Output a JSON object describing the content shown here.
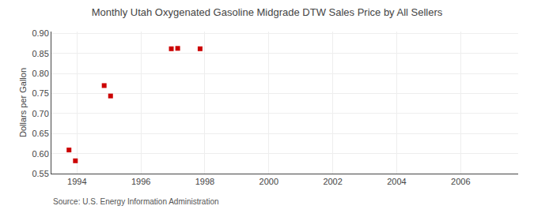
{
  "chart_data": {
    "type": "scatter",
    "title": "Monthly Utah Oxygenated Gasoline Midgrade DTW Sales Price by All Sellers",
    "ylabel": "Dollars per Gallon",
    "source": "Source: U.S. Energy Information Administration",
    "x": [
      1993.75,
      1993.95,
      1994.85,
      1995.05,
      1996.95,
      1997.15,
      1997.85
    ],
    "values": [
      0.609,
      0.582,
      0.77,
      0.744,
      0.862,
      0.863,
      0.862
    ],
    "color": "#cc0000",
    "marker": "square",
    "xlim": [
      1993.2,
      2007.8
    ],
    "ylim": [
      0.55,
      0.905
    ],
    "xticks": [
      1994,
      1996,
      1998,
      2000,
      2002,
      2004,
      2006
    ],
    "yticks": [
      0.55,
      {
        "value": 0.6,
        "label": "0.60"
      },
      0.65,
      {
        "value": 0.7,
        "label": "0.70"
      },
      0.75,
      {
        "value": 0.8,
        "label": "0.80"
      },
      0.85,
      {
        "value": 0.9,
        "label": "0.90"
      }
    ],
    "grid": true
  }
}
